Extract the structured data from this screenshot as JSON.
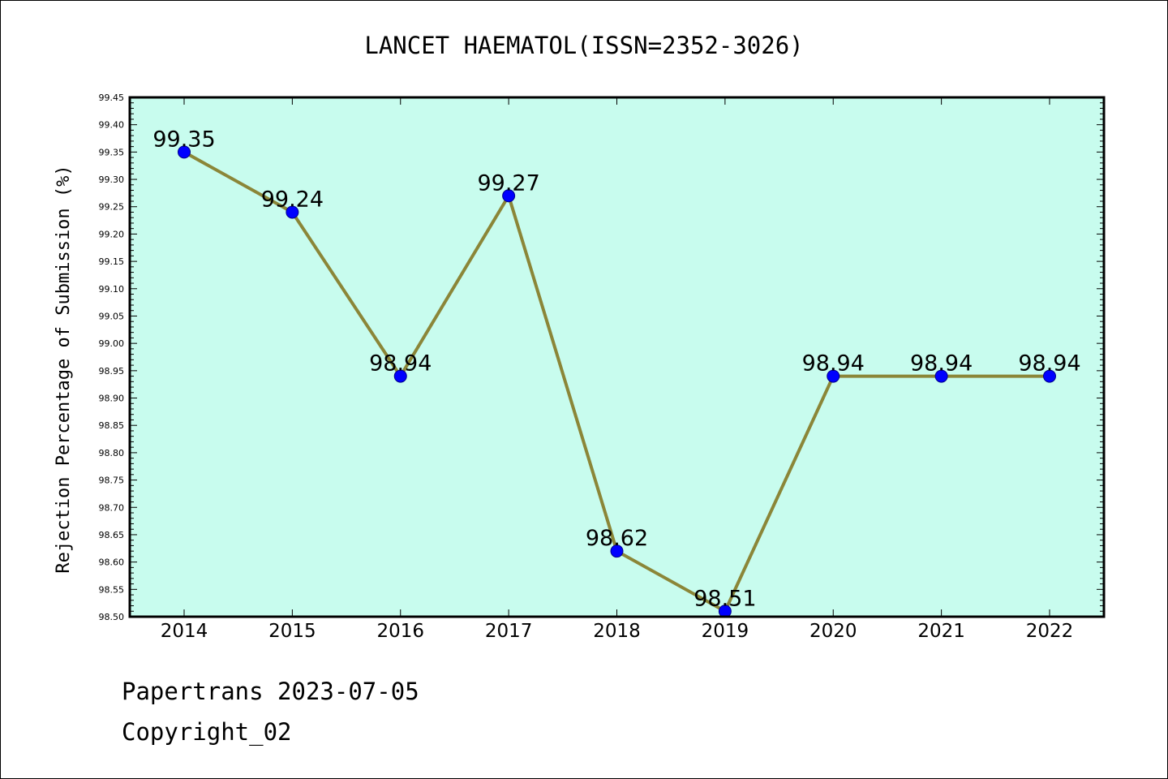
{
  "footer": {
    "line1": "Papertrans 2023-07-05",
    "line2": "Copyright_02"
  },
  "chart_data": {
    "type": "line",
    "title": "LANCET HAEMATOL(ISSN=2352-3026)",
    "xlabel": "",
    "ylabel": "Rejection Percentage of Submission (%)",
    "categories": [
      "2014",
      "2015",
      "2016",
      "2017",
      "2018",
      "2019",
      "2020",
      "2021",
      "2022"
    ],
    "values": [
      99.35,
      99.24,
      98.94,
      99.27,
      98.62,
      98.51,
      98.94,
      98.94,
      98.94
    ],
    "data_labels": [
      "99.35",
      "99.24",
      "98.94",
      "99.27",
      "98.62",
      "98.51",
      "98.94",
      "98.94",
      "98.94"
    ],
    "ylim": [
      98.5,
      99.45
    ],
    "yticks": [
      "98.50",
      "98.55",
      "98.60",
      "98.65",
      "98.70",
      "98.75",
      "98.80",
      "98.85",
      "98.90",
      "98.95",
      "99.00",
      "99.05",
      "99.10",
      "99.15",
      "99.20",
      "99.25",
      "99.30",
      "99.35",
      "99.40",
      "99.45"
    ],
    "grid": false,
    "colors": {
      "plot_background": "#c8fcee",
      "line": "#8b8638",
      "marker": "#0000ff"
    }
  }
}
